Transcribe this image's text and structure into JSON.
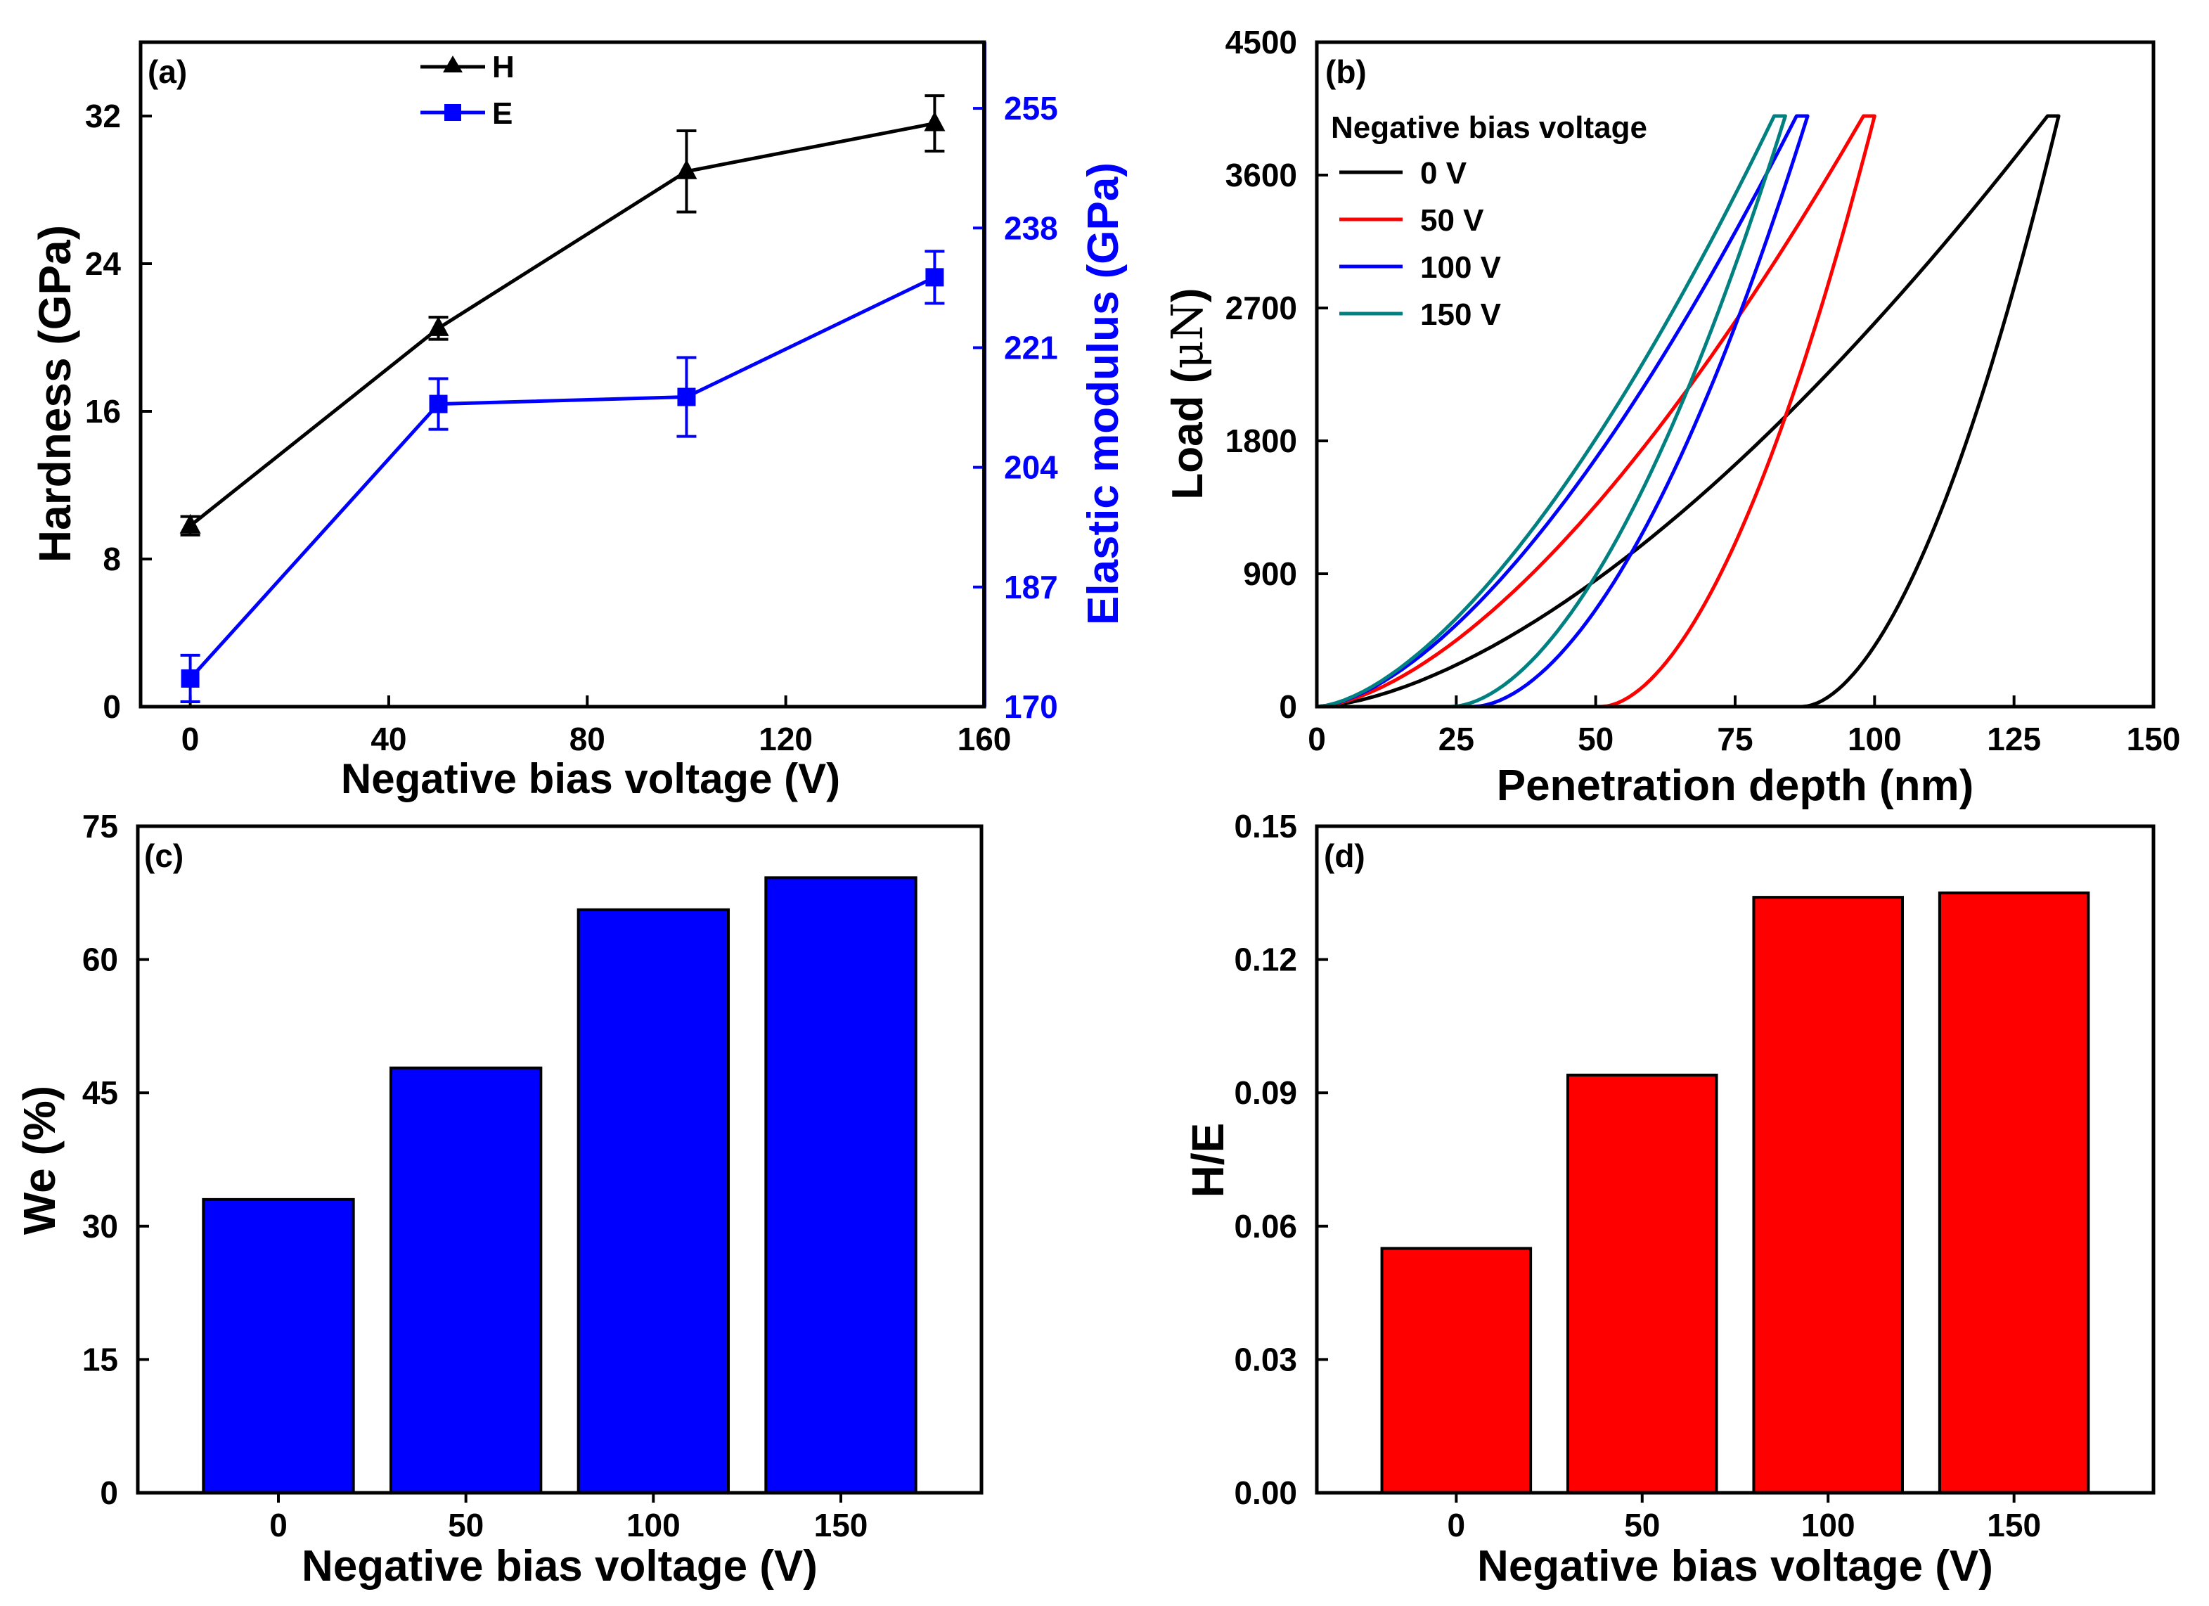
{
  "chart_data": [
    {
      "panel": "(a)",
      "type": "line",
      "xlabel": "Negative bias voltage (V)",
      "ylabel": "Hardness (GPa)",
      "y2label": "Elastic modulus (GPa)",
      "xlim": [
        -10,
        160
      ],
      "ylim": [
        0,
        36
      ],
      "y2lim": [
        170,
        264.4
      ],
      "xticks": [
        0,
        40,
        80,
        120,
        160
      ],
      "yticks": [
        0,
        8,
        16,
        24,
        32
      ],
      "y2ticks": [
        170,
        187,
        204,
        221,
        238,
        255
      ],
      "legend": [
        "H",
        "E"
      ],
      "series": [
        {
          "name": "H",
          "axis": "left",
          "color": "#000000",
          "marker": "triangle",
          "x": [
            0,
            50,
            100,
            150
          ],
          "values": [
            9.8,
            20.5,
            29.0,
            31.6
          ],
          "err": [
            0.5,
            0.6,
            2.2,
            1.5
          ]
        },
        {
          "name": "E",
          "axis": "right",
          "color": "#0000ff",
          "marker": "square",
          "x": [
            0,
            50,
            100,
            150
          ],
          "values": [
            174,
            213,
            214,
            231
          ],
          "err": [
            3.3,
            3.6,
            5.6,
            3.7
          ]
        }
      ]
    },
    {
      "panel": "(b)",
      "type": "line",
      "xlabel": "Penetration depth (nm)",
      "ylabel_prefix": "Load (",
      "ylabel_unit": "μN",
      "ylabel_suffix": ")",
      "xlim": [
        0,
        150
      ],
      "ylim": [
        0,
        4500
      ],
      "xticks": [
        0,
        25,
        50,
        75,
        100,
        125,
        150
      ],
      "yticks": [
        0,
        900,
        1800,
        2700,
        3600,
        4500
      ],
      "legend_title": "Negative bias voltage",
      "series": [
        {
          "name": "0 V",
          "color": "#000000",
          "max_depth": 131,
          "max_load": 4000,
          "residual_depth": 87
        },
        {
          "name": "50 V",
          "color": "#ff0000",
          "max_depth": 98,
          "max_load": 4000,
          "residual_depth": 51
        },
        {
          "name": "100 V",
          "color": "#0000ff",
          "max_depth": 86,
          "max_load": 4000,
          "residual_depth": 28
        },
        {
          "name": "150 V",
          "color": "#008080",
          "max_depth": 82,
          "max_load": 4000,
          "residual_depth": 24
        }
      ]
    },
    {
      "panel": "(c)",
      "type": "bar",
      "xlabel": "Negative bias voltage (V)",
      "ylabel": "We (%)",
      "categories": [
        "0",
        "50",
        "100",
        "150"
      ],
      "values": [
        33.0,
        47.8,
        65.6,
        69.2
      ],
      "ylim": [
        0,
        75
      ],
      "yticks": [
        0,
        15,
        30,
        45,
        60,
        75
      ],
      "color": "#0000ff"
    },
    {
      "panel": "(d)",
      "type": "bar",
      "xlabel": "Negative bias voltage (V)",
      "ylabel": "H/E",
      "categories": [
        "0",
        "50",
        "100",
        "150"
      ],
      "values": [
        0.055,
        0.094,
        0.134,
        0.135
      ],
      "ylim": [
        0,
        0.15
      ],
      "yticks": [
        0.0,
        0.03,
        0.06,
        0.09,
        0.12,
        0.15
      ],
      "ytick_labels": [
        "0.00",
        "0.03",
        "0.06",
        "0.09",
        "0.12",
        "0.15"
      ],
      "color": "#ff0000"
    }
  ]
}
